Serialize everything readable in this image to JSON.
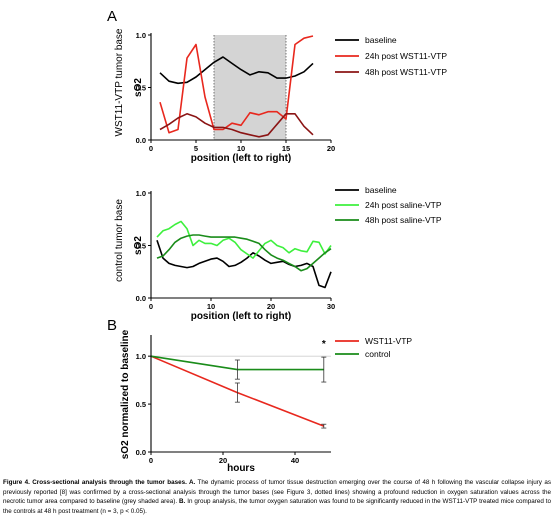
{
  "panel_labels": [
    "A",
    "B"
  ],
  "chart_data": [
    {
      "type": "line",
      "panel": "A",
      "side_title": "WST11-VTP tumor base",
      "ylabel": "sO2",
      "xlabel": "position (left to right)",
      "xlim": [
        0,
        20
      ],
      "ylim": [
        0,
        1.0
      ],
      "xticks": [
        0,
        5,
        10,
        15,
        20
      ],
      "yticks": [
        "0.0",
        "0.5",
        "1.0"
      ],
      "shaded_region": [
        7,
        15
      ],
      "series": [
        {
          "name": "baseline",
          "color": "#000000",
          "x": [
            1,
            2,
            3,
            4,
            5,
            6,
            7,
            8,
            9,
            10,
            11,
            12,
            13,
            14,
            15,
            16,
            17,
            18
          ],
          "y": [
            0.64,
            0.56,
            0.54,
            0.55,
            0.6,
            0.67,
            0.74,
            0.79,
            0.73,
            0.67,
            0.62,
            0.65,
            0.64,
            0.59,
            0.59,
            0.61,
            0.65,
            0.73
          ]
        },
        {
          "name": "24h post WST11-VTP",
          "color": "#e8281e",
          "x": [
            1,
            2,
            3,
            4,
            5,
            6,
            7,
            8,
            9,
            10,
            11,
            12,
            13,
            14,
            15,
            16,
            17,
            18
          ],
          "y": [
            0.36,
            0.07,
            0.1,
            0.78,
            0.91,
            0.41,
            0.1,
            0.1,
            0.16,
            0.14,
            0.26,
            0.24,
            0.27,
            0.27,
            0.2,
            0.91,
            0.97,
            0.99
          ]
        },
        {
          "name": "48h post WST11-VTP",
          "color": "#8b1414",
          "x": [
            1,
            2,
            3,
            4,
            5,
            6,
            7,
            8,
            9,
            10,
            11,
            12,
            13,
            14,
            15,
            16,
            17,
            18
          ],
          "y": [
            0.1,
            0.15,
            0.21,
            0.25,
            0.22,
            0.16,
            0.12,
            0.12,
            0.1,
            0.07,
            0.05,
            0.03,
            0.05,
            0.15,
            0.25,
            0.25,
            0.13,
            0.05
          ]
        }
      ]
    },
    {
      "type": "line",
      "panel": "A",
      "side_title": "control tumor base",
      "ylabel": "sO2",
      "xlabel": "position (left to right)",
      "xlim": [
        0,
        30
      ],
      "ylim": [
        0,
        1.0
      ],
      "xticks": [
        0,
        10,
        20,
        30
      ],
      "yticks": [
        "0.0",
        "0.5",
        "1.0"
      ],
      "series": [
        {
          "name": "baseline",
          "color": "#000000",
          "x": [
            1,
            2,
            3,
            4,
            5,
            6,
            7,
            8,
            9,
            10,
            11,
            12,
            13,
            14,
            15,
            16,
            17,
            18,
            19,
            20,
            21,
            22,
            23,
            24,
            25,
            26,
            27,
            28,
            29,
            30
          ],
          "y": [
            0.55,
            0.38,
            0.33,
            0.31,
            0.3,
            0.29,
            0.3,
            0.33,
            0.35,
            0.37,
            0.38,
            0.35,
            0.3,
            0.31,
            0.34,
            0.38,
            0.43,
            0.4,
            0.36,
            0.33,
            0.34,
            0.35,
            0.32,
            0.3,
            0.31,
            0.33,
            0.3,
            0.12,
            0.1,
            0.25
          ]
        },
        {
          "name": "24h post saline-VTP",
          "color": "#3ef03e",
          "x": [
            1,
            2,
            3,
            4,
            5,
            6,
            7,
            8,
            9,
            10,
            11,
            12,
            13,
            14,
            15,
            16,
            17,
            18,
            19,
            20,
            21,
            22,
            23,
            24,
            25,
            26,
            27,
            28,
            29,
            30
          ],
          "y": [
            0.58,
            0.64,
            0.66,
            0.7,
            0.73,
            0.66,
            0.5,
            0.55,
            0.52,
            0.52,
            0.5,
            0.55,
            0.57,
            0.53,
            0.46,
            0.42,
            0.38,
            0.45,
            0.52,
            0.55,
            0.5,
            0.48,
            0.43,
            0.47,
            0.45,
            0.44,
            0.54,
            0.53,
            0.42,
            0.5
          ]
        },
        {
          "name": "48h post saline-VTP",
          "color": "#1a8c1a",
          "x": [
            1,
            2,
            3,
            4,
            5,
            6,
            7,
            8,
            9,
            10,
            11,
            12,
            13,
            14,
            15,
            16,
            17,
            18,
            19,
            20,
            21,
            22,
            23,
            24,
            25,
            26,
            27,
            28,
            29,
            30
          ],
          "y": [
            0.38,
            0.4,
            0.46,
            0.53,
            0.57,
            0.59,
            0.6,
            0.6,
            0.59,
            0.58,
            0.58,
            0.58,
            0.58,
            0.58,
            0.57,
            0.56,
            0.54,
            0.52,
            0.46,
            0.41,
            0.38,
            0.36,
            0.33,
            0.3,
            0.26,
            0.28,
            0.33,
            0.38,
            0.43,
            0.47
          ]
        }
      ]
    },
    {
      "type": "line",
      "panel": "B",
      "ylabel": "sO2 normalized to baseline",
      "xlabel": "hours",
      "xlim": [
        0,
        50
      ],
      "ylim": [
        0,
        1.2
      ],
      "xticks": [
        0,
        20,
        40
      ],
      "yticks": [
        "0.0",
        "0.5",
        "1.0"
      ],
      "reference_line": 1.0,
      "annotation": "*",
      "annotation_x": 48,
      "series": [
        {
          "name": "WST11-VTP",
          "color": "#e8281e",
          "x": [
            0,
            24,
            48
          ],
          "y": [
            1.0,
            0.62,
            0.27
          ],
          "err": [
            0,
            0.1,
            0.02
          ]
        },
        {
          "name": "control",
          "color": "#1a8c1a",
          "x": [
            0,
            24,
            48
          ],
          "y": [
            1.0,
            0.86,
            0.86
          ],
          "err": [
            0,
            0.1,
            0.13
          ]
        }
      ]
    }
  ],
  "caption": {
    "lead": "Figure 4. Cross-sectional analysis through the tumor bases. A.",
    "part_a": " The dynamic process of tumor tissue destruction emerging over the course of 48 h following the vascular collapse injury as previously reported [8] was confirmed by a cross-sectional analysis through the tumor bases (see Figure 3, dotted lines) showing a profound reduction in oxygen saturation values across the necrotic tumor area compared to baseline (grey shaded area). ",
    "label_b": "B.",
    "part_b": " In group analysis, the tumor oxygen saturation was found to be significantly reduced in the WST11-VTP treated mice compared to the controls at 48 h post treatment (n = 3, p < 0.05)."
  }
}
